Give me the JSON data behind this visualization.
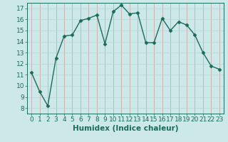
{
  "x": [
    0,
    1,
    2,
    3,
    4,
    5,
    6,
    7,
    8,
    9,
    10,
    11,
    12,
    13,
    14,
    15,
    16,
    17,
    18,
    19,
    20,
    21,
    22,
    23
  ],
  "y": [
    11.2,
    9.5,
    8.2,
    12.5,
    14.5,
    14.6,
    15.9,
    16.1,
    16.4,
    13.8,
    16.7,
    17.3,
    16.5,
    16.6,
    13.9,
    13.9,
    16.1,
    15.0,
    15.8,
    15.5,
    14.6,
    13.0,
    11.8,
    11.5
  ],
  "line_color": "#1a6b5a",
  "marker": "D",
  "marker_size": 2.5,
  "bg_color": "#cce8e8",
  "grid_color_major": "#b8d4d4",
  "grid_color_minor": "#daeaea",
  "xlabel": "Humidex (Indice chaleur)",
  "xlim": [
    -0.5,
    23.5
  ],
  "ylim": [
    7.5,
    17.5
  ],
  "yticks": [
    8,
    9,
    10,
    11,
    12,
    13,
    14,
    15,
    16,
    17
  ],
  "xticks": [
    0,
    1,
    2,
    3,
    4,
    5,
    6,
    7,
    8,
    9,
    10,
    11,
    12,
    13,
    14,
    15,
    16,
    17,
    18,
    19,
    20,
    21,
    22,
    23
  ],
  "xlabel_fontsize": 7.5,
  "tick_fontsize": 6.5,
  "line_width": 1.0,
  "tick_color": "#1a6b5a"
}
